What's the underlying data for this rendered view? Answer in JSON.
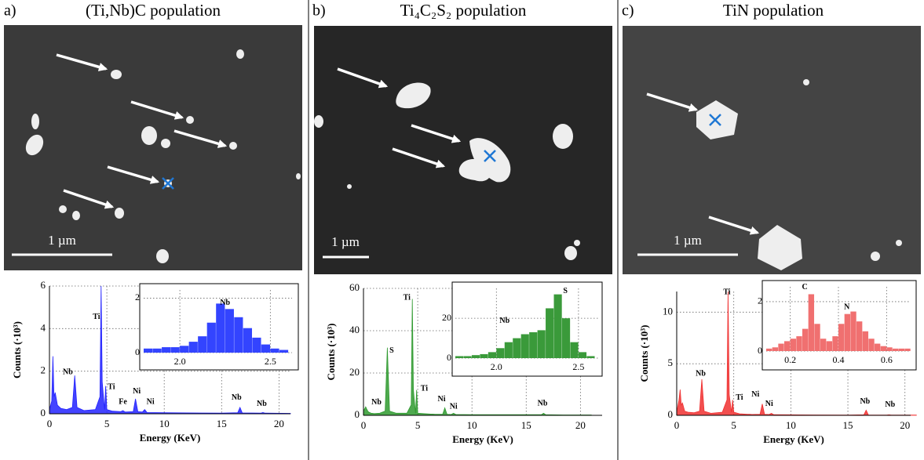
{
  "panels": [
    {
      "label": "a)",
      "title": "(Ti,Nb)C population",
      "scale_bar": "1 µm"
    },
    {
      "label": "b)",
      "title": "Ti₄C₂S₂ population",
      "scale_bar": "1 µm"
    },
    {
      "label": "c)",
      "title": "TiN population",
      "scale_bar": "1 µm"
    }
  ],
  "chart_data": [
    {
      "type": "area",
      "xlabel": "Energy (KeV)",
      "ylabel": "Counts (·10³)",
      "color": "#2222ff",
      "grid": true,
      "xlim": [
        0,
        21
      ],
      "xticks": [
        0,
        5,
        10,
        15,
        20
      ],
      "ylim": [
        0,
        6
      ],
      "yticks": [
        0,
        2,
        4,
        6
      ],
      "x": [
        0,
        0.2,
        0.3,
        0.4,
        0.5,
        0.7,
        1,
        1.5,
        2,
        2.2,
        2.4,
        3,
        4,
        4.4,
        4.5,
        4.6,
        4.8,
        4.9,
        5.0,
        5.5,
        6.2,
        6.4,
        6.6,
        7.3,
        7.5,
        7.7,
        8.1,
        8.3,
        8.5,
        10,
        12,
        15,
        16.4,
        16.6,
        16.8,
        18.4,
        18.6,
        18.8,
        21
      ],
      "values": [
        0.2,
        0.6,
        2.7,
        0.8,
        1.0,
        0.4,
        0.25,
        0.2,
        0.3,
        1.8,
        0.3,
        0.15,
        0.2,
        0.8,
        6.0,
        1.5,
        0.2,
        1.3,
        0.2,
        0.12,
        0.1,
        0.15,
        0.08,
        0.1,
        0.7,
        0.1,
        0.08,
        0.2,
        0.06,
        0.05,
        0.04,
        0.03,
        0.05,
        0.3,
        0.04,
        0.03,
        0.06,
        0.03,
        0.02
      ],
      "annotations": [
        {
          "text": "Ti",
          "x": 4.1,
          "y": 4.4
        },
        {
          "text": "Nb",
          "x": 1.6,
          "y": 1.8
        },
        {
          "text": "Ti",
          "x": 5.4,
          "y": 1.1
        },
        {
          "text": "Fe",
          "x": 6.4,
          "y": 0.4
        },
        {
          "text": "Ni",
          "x": 7.6,
          "y": 0.9
        },
        {
          "text": "Ni",
          "x": 8.8,
          "y": 0.4
        },
        {
          "text": "Nb",
          "x": 16.3,
          "y": 0.6
        },
        {
          "text": "Nb",
          "x": 18.5,
          "y": 0.3
        }
      ]
    },
    {
      "type": "area",
      "xlabel": "Energy (KeV)",
      "ylabel": "Counts (·10³)",
      "color": "#2f9a2f",
      "grid": true,
      "xlim": [
        0,
        22
      ],
      "xticks": [
        0,
        5,
        10,
        15,
        20
      ],
      "ylim": [
        0,
        60
      ],
      "yticks": [
        0,
        20,
        40,
        60
      ],
      "x": [
        0,
        0.2,
        0.3,
        0.4,
        0.5,
        0.7,
        1,
        1.5,
        2,
        2.2,
        2.4,
        3,
        4,
        4.4,
        4.5,
        4.6,
        4.8,
        4.9,
        5.0,
        5.5,
        6.2,
        6.4,
        6.6,
        7.3,
        7.5,
        7.7,
        8.1,
        8.3,
        8.5,
        10,
        12,
        15,
        16.4,
        16.6,
        16.8,
        18.4,
        18.6,
        18.8,
        21
      ],
      "values": [
        2,
        4,
        3,
        2,
        1.5,
        1,
        0.8,
        1,
        2,
        32,
        2,
        1,
        1,
        5,
        55,
        12,
        1,
        12,
        1,
        0.8,
        0.6,
        0.6,
        0.5,
        0.5,
        3.5,
        0.5,
        0.4,
        1,
        0.4,
        0.3,
        0.3,
        0.3,
        0.3,
        1,
        0.3,
        0.2,
        0.2,
        0.2,
        0.2
      ],
      "annotations": [
        {
          "text": "Ti",
          "x": 4.0,
          "y": 54
        },
        {
          "text": "S",
          "x": 2.6,
          "y": 29
        },
        {
          "text": "Nb",
          "x": 1.2,
          "y": 4.5
        },
        {
          "text": "Ti",
          "x": 5.6,
          "y": 11
        },
        {
          "text": "Ni",
          "x": 7.2,
          "y": 6
        },
        {
          "text": "Ni",
          "x": 8.3,
          "y": 2.5
        },
        {
          "text": "Nb",
          "x": 16.5,
          "y": 4
        }
      ]
    },
    {
      "type": "area",
      "xlabel": "Energy (KeV)",
      "ylabel": "Counts (·10³)",
      "color": "#f03030",
      "grid": true,
      "xlim": [
        0,
        20.5
      ],
      "xticks": [
        0,
        5,
        10,
        15,
        20
      ],
      "ylim": [
        0,
        12
      ],
      "yticks": [
        0,
        5,
        10
      ],
      "x": [
        0,
        0.2,
        0.3,
        0.4,
        0.5,
        0.7,
        1,
        1.5,
        2,
        2.2,
        2.4,
        3,
        4,
        4.4,
        4.5,
        4.6,
        4.8,
        4.9,
        5.0,
        5.5,
        6.2,
        6.4,
        6.6,
        7.3,
        7.5,
        7.7,
        8.1,
        8.3,
        8.5,
        10,
        12,
        15,
        16.4,
        16.6,
        16.8,
        18.4,
        18.6,
        18.8,
        21
      ],
      "values": [
        0.3,
        1.5,
        2.5,
        1.0,
        1.2,
        0.4,
        0.3,
        0.25,
        0.4,
        3.5,
        0.4,
        0.2,
        0.3,
        1.5,
        12,
        2,
        0.3,
        1.5,
        0.3,
        0.15,
        0.1,
        0.1,
        0.08,
        0.1,
        1.1,
        0.1,
        0.08,
        0.2,
        0.06,
        0.05,
        0.04,
        0.03,
        0.05,
        0.5,
        0.04,
        0.03,
        0.05,
        0.03,
        0.02
      ],
      "annotations": [
        {
          "text": "Ti",
          "x": 4.4,
          "y": 11.6
        },
        {
          "text": "Nb",
          "x": 2.1,
          "y": 3.7
        },
        {
          "text": "Ti",
          "x": 5.5,
          "y": 1.4
        },
        {
          "text": "Ni",
          "x": 6.9,
          "y": 1.7
        },
        {
          "text": "Ni",
          "x": 8.1,
          "y": 0.8
        },
        {
          "text": "Nb",
          "x": 16.5,
          "y": 1.0
        },
        {
          "text": "Nb",
          "x": 18.7,
          "y": 0.7
        }
      ]
    },
    {
      "type": "histogram",
      "color": "#3344ff",
      "grid": true,
      "xlim": [
        1.8,
        2.62
      ],
      "xticks": [
        {
          "value": 2,
          "label": "2.0"
        },
        {
          "value": 2.5,
          "label": "2.5"
        }
      ],
      "ylim": [
        0,
        2.3
      ],
      "yticks": [
        0,
        2
      ],
      "bins": [
        1.8,
        1.85,
        1.9,
        1.95,
        2.0,
        2.05,
        2.1,
        2.15,
        2.2,
        2.25,
        2.3,
        2.35,
        2.4,
        2.45,
        2.5,
        2.55,
        2.6
      ],
      "values": [
        0.15,
        0.15,
        0.2,
        0.2,
        0.25,
        0.4,
        0.6,
        1.1,
        1.8,
        1.6,
        1.3,
        0.9,
        0.55,
        0.3,
        0.15,
        0.1
      ],
      "annotations": [
        {
          "text": "Nb",
          "x": 2.25,
          "y": 1.7
        }
      ]
    },
    {
      "type": "histogram",
      "color": "#3a9a3a",
      "grid": true,
      "xlim": [
        1.75,
        2.62
      ],
      "xticks": [
        {
          "value": 2,
          "label": "2.0"
        },
        {
          "value": 2.5,
          "label": "2.5"
        }
      ],
      "ylim": [
        0,
        35
      ],
      "yticks": [
        0,
        20
      ],
      "bins": [
        1.75,
        1.8,
        1.85,
        1.9,
        1.95,
        2.0,
        2.05,
        2.1,
        2.15,
        2.2,
        2.25,
        2.3,
        2.35,
        2.4,
        2.45,
        2.5,
        2.55,
        2.6
      ],
      "values": [
        1,
        1,
        1.5,
        2,
        3,
        5,
        8,
        10,
        12,
        13,
        14,
        25,
        32,
        20,
        8,
        3,
        1
      ],
      "annotations": [
        {
          "text": "S",
          "x": 2.42,
          "y": 32
        },
        {
          "text": "Nb",
          "x": 2.05,
          "y": 17
        }
      ]
    },
    {
      "type": "histogram",
      "color": "#f07070",
      "grid": true,
      "xlim": [
        0.1,
        0.7
      ],
      "xticks": [
        0.2,
        0.4,
        0.6
      ],
      "ylim": [
        0,
        2.6
      ],
      "yticks": [
        0,
        2
      ],
      "bins": [
        0.1,
        0.125,
        0.15,
        0.175,
        0.2,
        0.225,
        0.25,
        0.275,
        0.3,
        0.325,
        0.35,
        0.375,
        0.4,
        0.425,
        0.45,
        0.475,
        0.5,
        0.525,
        0.55,
        0.575,
        0.6,
        0.625,
        0.65,
        0.675,
        0.7
      ],
      "values": [
        0.1,
        0.15,
        0.3,
        0.4,
        0.5,
        0.6,
        0.9,
        2.3,
        1.1,
        0.5,
        0.4,
        0.6,
        1.1,
        1.5,
        1.6,
        1.2,
        0.8,
        0.5,
        0.3,
        0.2,
        0.15,
        0.1,
        0.1,
        0.1
      ],
      "annotations": [
        {
          "text": "C",
          "x": 0.26,
          "y": 2.45
        },
        {
          "text": "N",
          "x": 0.435,
          "y": 1.65
        }
      ]
    }
  ]
}
